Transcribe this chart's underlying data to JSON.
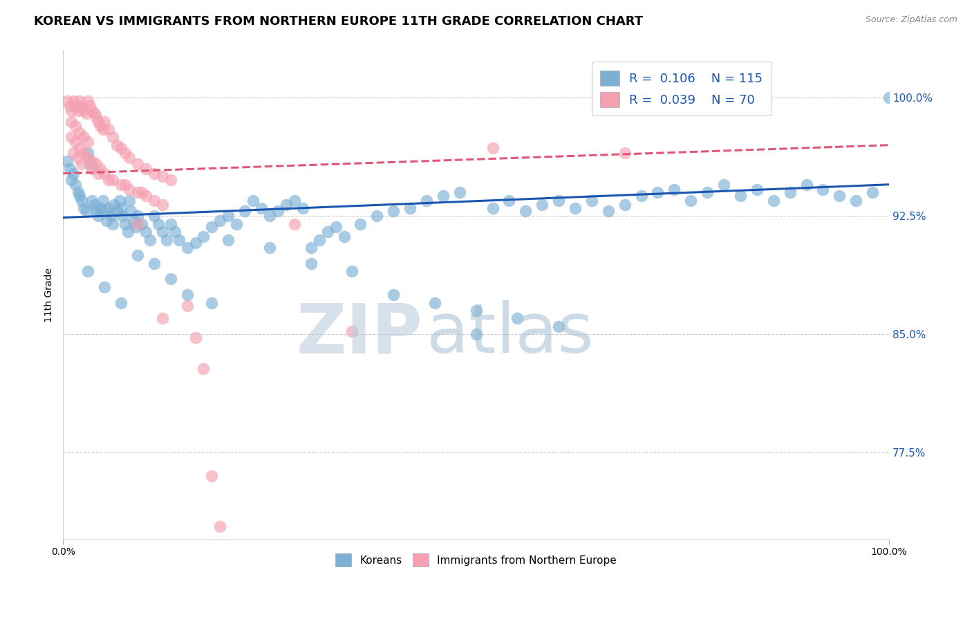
{
  "title": "KOREAN VS IMMIGRANTS FROM NORTHERN EUROPE 11TH GRADE CORRELATION CHART",
  "source": "Source: ZipAtlas.com",
  "ylabel": "11th Grade",
  "ytick_labels": [
    "100.0%",
    "92.5%",
    "85.0%",
    "77.5%"
  ],
  "ytick_values": [
    1.0,
    0.925,
    0.85,
    0.775
  ],
  "xlim": [
    0.0,
    1.0
  ],
  "ylim": [
    0.72,
    1.03
  ],
  "blue_color": "#7BAFD4",
  "pink_color": "#F4A0B0",
  "blue_line_color": "#1A56B0",
  "pink_line_color": "#E05575",
  "legend_blue_r": "0.106",
  "legend_blue_n": "115",
  "legend_pink_r": "0.039",
  "legend_pink_n": "70",
  "blue_line_y_start": 0.924,
  "blue_line_y_end": 0.945,
  "pink_line_y_start": 0.952,
  "pink_line_y_end": 0.97,
  "grid_color": "#CCCCCC",
  "background_color": "#FFFFFF",
  "title_fontsize": 13,
  "axis_label_fontsize": 10,
  "tick_fontsize": 10,
  "legend_fontsize": 13,
  "blue_scatter_x": [
    0.005,
    0.008,
    0.01,
    0.012,
    0.015,
    0.018,
    0.02,
    0.022,
    0.025,
    0.028,
    0.03,
    0.032,
    0.035,
    0.038,
    0.04,
    0.042,
    0.045,
    0.048,
    0.05,
    0.052,
    0.055,
    0.058,
    0.06,
    0.062,
    0.065,
    0.068,
    0.07,
    0.072,
    0.075,
    0.078,
    0.08,
    0.082,
    0.085,
    0.088,
    0.09,
    0.095,
    0.1,
    0.105,
    0.11,
    0.115,
    0.12,
    0.125,
    0.13,
    0.135,
    0.14,
    0.15,
    0.16,
    0.17,
    0.18,
    0.19,
    0.2,
    0.21,
    0.22,
    0.23,
    0.24,
    0.25,
    0.26,
    0.27,
    0.28,
    0.29,
    0.3,
    0.31,
    0.32,
    0.33,
    0.34,
    0.36,
    0.38,
    0.4,
    0.42,
    0.44,
    0.46,
    0.48,
    0.5,
    0.52,
    0.54,
    0.56,
    0.58,
    0.6,
    0.62,
    0.64,
    0.66,
    0.68,
    0.7,
    0.72,
    0.74,
    0.76,
    0.78,
    0.8,
    0.82,
    0.84,
    0.86,
    0.88,
    0.9,
    0.92,
    0.94,
    0.96,
    0.98,
    1.0,
    0.03,
    0.05,
    0.07,
    0.09,
    0.11,
    0.13,
    0.15,
    0.18,
    0.2,
    0.25,
    0.3,
    0.35,
    0.4,
    0.45,
    0.5,
    0.55,
    0.6
  ],
  "blue_scatter_y": [
    0.96,
    0.955,
    0.948,
    0.952,
    0.945,
    0.94,
    0.938,
    0.935,
    0.93,
    0.928,
    0.965,
    0.958,
    0.935,
    0.932,
    0.928,
    0.925,
    0.93,
    0.935,
    0.928,
    0.922,
    0.93,
    0.925,
    0.92,
    0.932,
    0.928,
    0.935,
    0.93,
    0.925,
    0.92,
    0.915,
    0.935,
    0.928,
    0.922,
    0.918,
    0.925,
    0.92,
    0.915,
    0.91,
    0.925,
    0.92,
    0.915,
    0.91,
    0.92,
    0.915,
    0.91,
    0.905,
    0.908,
    0.912,
    0.918,
    0.922,
    0.925,
    0.92,
    0.928,
    0.935,
    0.93,
    0.925,
    0.928,
    0.932,
    0.935,
    0.93,
    0.905,
    0.91,
    0.915,
    0.918,
    0.912,
    0.92,
    0.925,
    0.928,
    0.93,
    0.935,
    0.938,
    0.94,
    0.85,
    0.93,
    0.935,
    0.928,
    0.932,
    0.935,
    0.93,
    0.935,
    0.928,
    0.932,
    0.938,
    0.94,
    0.942,
    0.935,
    0.94,
    0.945,
    0.938,
    0.942,
    0.935,
    0.94,
    0.945,
    0.942,
    0.938,
    0.935,
    0.94,
    1.0,
    0.89,
    0.88,
    0.87,
    0.9,
    0.895,
    0.885,
    0.875,
    0.87,
    0.91,
    0.905,
    0.895,
    0.89,
    0.875,
    0.87,
    0.865,
    0.86,
    0.855
  ],
  "pink_scatter_x": [
    0.005,
    0.008,
    0.01,
    0.012,
    0.015,
    0.018,
    0.02,
    0.022,
    0.025,
    0.028,
    0.03,
    0.032,
    0.035,
    0.038,
    0.04,
    0.042,
    0.045,
    0.048,
    0.05,
    0.055,
    0.06,
    0.065,
    0.07,
    0.075,
    0.08,
    0.09,
    0.1,
    0.11,
    0.12,
    0.13,
    0.01,
    0.015,
    0.02,
    0.025,
    0.03,
    0.035,
    0.04,
    0.045,
    0.05,
    0.06,
    0.07,
    0.08,
    0.09,
    0.1,
    0.11,
    0.12,
    0.01,
    0.015,
    0.02,
    0.025,
    0.03,
    0.012,
    0.018,
    0.022,
    0.035,
    0.042,
    0.055,
    0.075,
    0.095,
    0.28,
    0.35,
    0.12,
    0.09,
    0.52,
    0.68,
    0.15,
    0.16,
    0.17,
    0.18,
    0.19
  ],
  "pink_scatter_y": [
    0.998,
    0.995,
    0.992,
    0.998,
    0.995,
    0.992,
    0.998,
    0.995,
    0.992,
    0.99,
    0.998,
    0.995,
    0.992,
    0.99,
    0.988,
    0.985,
    0.982,
    0.98,
    0.985,
    0.98,
    0.975,
    0.97,
    0.968,
    0.965,
    0.962,
    0.958,
    0.955,
    0.952,
    0.95,
    0.948,
    0.975,
    0.972,
    0.968,
    0.965,
    0.962,
    0.96,
    0.958,
    0.955,
    0.952,
    0.948,
    0.945,
    0.942,
    0.94,
    0.938,
    0.935,
    0.932,
    0.985,
    0.982,
    0.978,
    0.975,
    0.972,
    0.965,
    0.962,
    0.958,
    0.955,
    0.952,
    0.948,
    0.945,
    0.94,
    0.92,
    0.852,
    0.86,
    0.92,
    0.968,
    0.965,
    0.868,
    0.848,
    0.828,
    0.76,
    0.728
  ]
}
